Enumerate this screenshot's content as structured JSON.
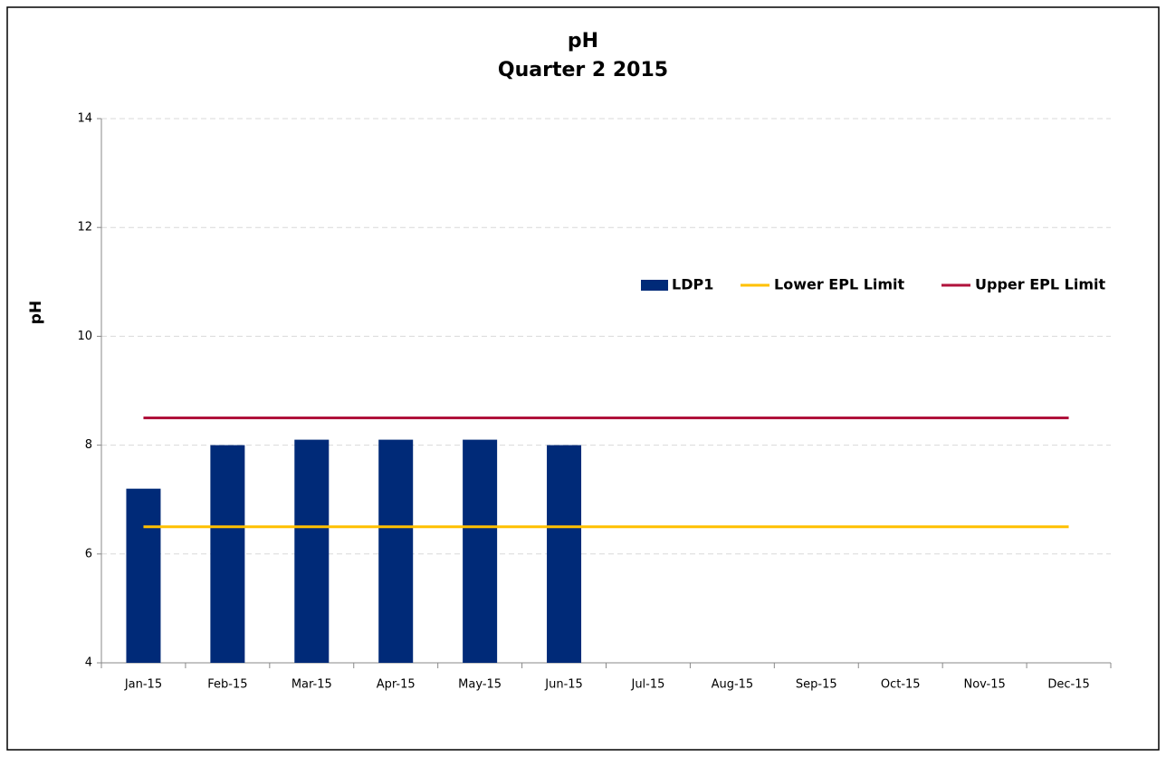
{
  "chart_data": {
    "type": "bar",
    "title": "pH",
    "subtitle": "Quarter 2 2015",
    "y_label": "pH",
    "categories": [
      "Jan-15",
      "Feb-15",
      "Mar-15",
      "Apr-15",
      "May-15",
      "Jun-15",
      "Jul-15",
      "Aug-15",
      "Sep-15",
      "Oct-15",
      "Nov-15",
      "Dec-15"
    ],
    "series": [
      {
        "name": "LDP1",
        "type": "bar",
        "color": "#002a78",
        "values": [
          7.2,
          8.0,
          8.1,
          8.1,
          8.1,
          8.0,
          null,
          null,
          null,
          null,
          null,
          null
        ]
      },
      {
        "name": "Lower EPL Limit",
        "type": "line",
        "color": "#ffc000",
        "values": [
          6.5,
          6.5,
          6.5,
          6.5,
          6.5,
          6.5,
          6.5,
          6.5,
          6.5,
          6.5,
          6.5,
          6.5
        ]
      },
      {
        "name": "Upper EPL Limit",
        "type": "line",
        "color": "#b0123b",
        "values": [
          8.5,
          8.5,
          8.5,
          8.5,
          8.5,
          8.5,
          8.5,
          8.5,
          8.5,
          8.5,
          8.5,
          8.5
        ]
      }
    ],
    "ylim": [
      4,
      14
    ],
    "yticks": [
      4,
      6,
      8,
      10,
      12,
      14
    ],
    "grid": true,
    "legend": "top-right"
  }
}
